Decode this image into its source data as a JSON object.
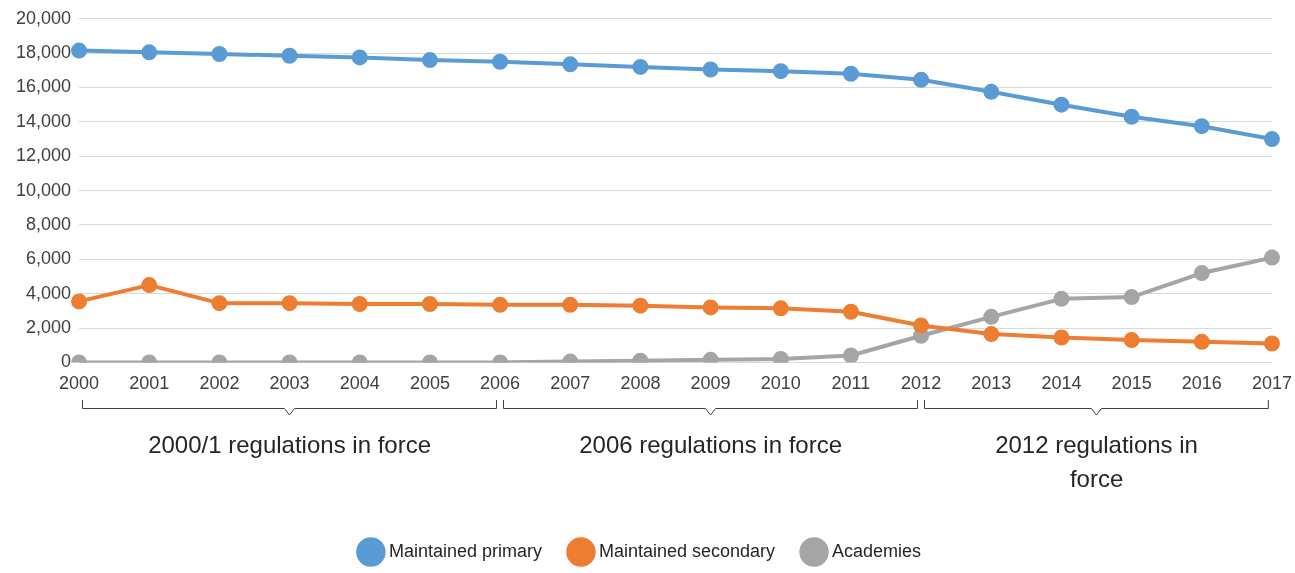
{
  "chart_data": {
    "type": "line",
    "categories": [
      "2000",
      "2001",
      "2002",
      "2003",
      "2004",
      "2005",
      "2006",
      "2007",
      "2008",
      "2009",
      "2010",
      "2011",
      "2012",
      "2013",
      "2014",
      "2015",
      "2016",
      "2017"
    ],
    "series": [
      {
        "name": "Maintained primary",
        "color": "#5b9bd5",
        "values": [
          18150,
          18050,
          17950,
          17850,
          17750,
          17600,
          17500,
          17350,
          17200,
          17050,
          16950,
          16800,
          16450,
          15750,
          15000,
          14300,
          13750,
          13000
        ]
      },
      {
        "name": "Maintained secondary",
        "color": "#ed7d31",
        "values": [
          3550,
          4500,
          3450,
          3450,
          3400,
          3400,
          3350,
          3350,
          3300,
          3200,
          3150,
          2950,
          2150,
          1650,
          1450,
          1300,
          1200,
          1100
        ]
      },
      {
        "name": "Academies",
        "color": "#a5a5a5",
        "values": [
          0,
          0,
          0,
          0,
          0,
          0,
          0,
          50,
          100,
          150,
          200,
          400,
          1550,
          2650,
          3700,
          3800,
          5200,
          6100
        ]
      }
    ],
    "ylim": [
      0,
      20000
    ],
    "yticks": [
      0,
      {
        "value": 2000,
        "label": "2,000"
      },
      {
        "value": 4000,
        "label": "4,000"
      },
      {
        "value": 6000,
        "label": "6,000"
      },
      {
        "value": 8000,
        "label": "8,000"
      },
      {
        "value": 10000,
        "label": "10,000"
      },
      {
        "value": 12000,
        "label": "12,000"
      },
      {
        "value": 14000,
        "label": "14,000"
      },
      {
        "value": 16000,
        "label": "16,000"
      },
      {
        "value": 18000,
        "label": "18,000"
      },
      {
        "value": 20000,
        "label": "20,000"
      }
    ],
    "grid": "y",
    "legend": "bottom",
    "marker": "circle",
    "line_style": "solid",
    "annotations": [
      "2000/1 regulations in force",
      "2006 regulations in force",
      "2012 regulations in force"
    ]
  }
}
